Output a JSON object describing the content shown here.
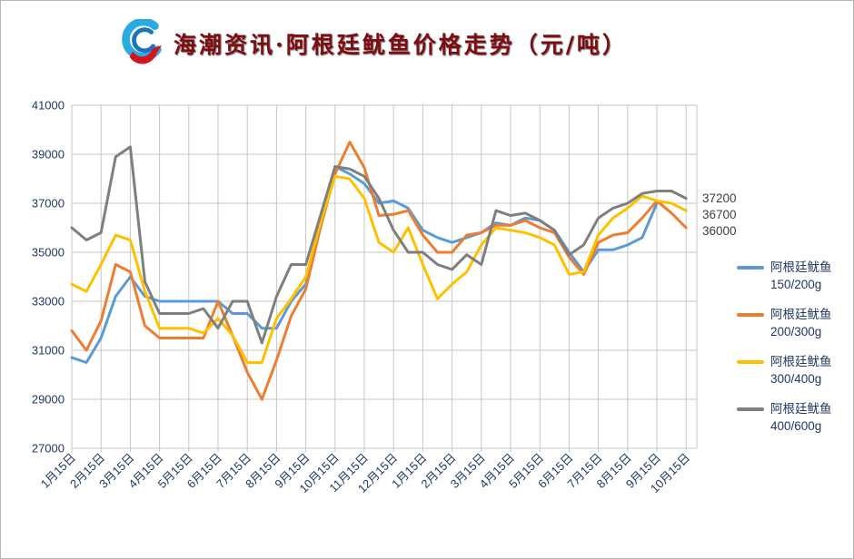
{
  "title": {
    "text": "海潮资讯·阿根廷鱿鱼价格走势（元/吨）",
    "color": "#7e0c10"
  },
  "logo": {
    "name": "haichao-wave-logo",
    "colors": {
      "light_blue": "#29abe2",
      "dark_blue": "#1b75bb",
      "red": "#d6131c"
    }
  },
  "colors": {
    "grid": "#c6c6c6",
    "axis_text": "#1f3864",
    "end_label_text": "#404040",
    "background": "#ffffff"
  },
  "chart_data": {
    "type": "line",
    "title": "海潮资讯·阿根廷鱿鱼价格走势（元/吨）",
    "xlabel": "",
    "ylabel": "",
    "ylim": [
      27000,
      41000
    ],
    "y_step": 2000,
    "grid": true,
    "legend_position": "right",
    "y_tick_labels": [
      "41000",
      "39000",
      "37000",
      "35000",
      "33000",
      "31000",
      "29000",
      "27000"
    ],
    "x_tick_labels": [
      "1月15日",
      "2月15日",
      "3月15日",
      "4月15日",
      "5月15日",
      "6月15日",
      "7月15日",
      "8月15日",
      "9月15日",
      "10月15日",
      "11月15日",
      "12月15日",
      "1月15日",
      "2月15日",
      "3月15日",
      "4月15日",
      "5月15日",
      "6月15日",
      "7月15日",
      "8月15日",
      "9月15日",
      "10月15日"
    ],
    "points_per_tick": 2,
    "series": [
      {
        "name": "阿根廷鱿鱼 150/200g",
        "color": "#5b9bd5",
        "values": [
          30700,
          30500,
          31500,
          33200,
          34000,
          33200,
          33000,
          33000,
          33000,
          33000,
          33000,
          32500,
          32500,
          31900,
          31900,
          33000,
          33700,
          36300,
          38500,
          38200,
          37800,
          37000,
          37100,
          36800,
          35900,
          35600,
          35400,
          35600,
          35800,
          36200,
          36100,
          36400,
          36300,
          35900,
          35000,
          34200,
          35100,
          35100,
          35300,
          35600,
          37000
        ]
      },
      {
        "name": "阿根廷鱿鱼 200/300g",
        "color": "#ed7d31",
        "values": [
          31800,
          31000,
          32200,
          34500,
          34200,
          32000,
          31500,
          31500,
          31500,
          31500,
          33000,
          31600,
          30100,
          29000,
          30600,
          32400,
          33500,
          36000,
          38200,
          39500,
          38450,
          36500,
          36550,
          36700,
          35700,
          35000,
          35000,
          35700,
          35800,
          36100,
          36100,
          36300,
          36000,
          35800,
          34800,
          34100,
          35400,
          35700,
          35800,
          36400,
          37100,
          36600,
          36000
        ]
      },
      {
        "name": "阿根廷鱿鱼 300/400g",
        "color": "#ffc000",
        "values": [
          33700,
          33400,
          34500,
          35700,
          35500,
          33400,
          31900,
          31900,
          31900,
          31700,
          32300,
          31600,
          30500,
          30500,
          32300,
          33100,
          34000,
          36200,
          38100,
          38000,
          37200,
          35400,
          35000,
          36000,
          34500,
          33100,
          33700,
          34200,
          35300,
          36000,
          35900,
          35800,
          35600,
          35300,
          34100,
          34200,
          35700,
          36400,
          36800,
          37300,
          37100,
          37000,
          36700
        ]
      },
      {
        "name": "阿根廷鱿鱼 400/600g",
        "color": "#7f7f7f",
        "values": [
          36000,
          35500,
          35800,
          38900,
          39300,
          33800,
          32500,
          32500,
          32500,
          32700,
          31900,
          33000,
          33000,
          31300,
          33200,
          34500,
          34500,
          36500,
          38500,
          38400,
          38100,
          37200,
          35900,
          35000,
          35000,
          34500,
          34300,
          34900,
          34500,
          36700,
          36500,
          36600,
          36300,
          35900,
          34900,
          35300,
          36400,
          36800,
          37000,
          37400,
          37500,
          37500,
          37200
        ]
      }
    ],
    "end_labels": [
      {
        "text": "37200",
        "value": 37200,
        "series": "阿根廷鱿鱼 400/600g"
      },
      {
        "text": "36700",
        "value": 36700,
        "series": "阿根廷鱿鱼 300/400g"
      },
      {
        "text": "36000",
        "value": 36000,
        "series": "阿根廷鱿鱼 200/300g"
      }
    ],
    "legend": {
      "items": [
        {
          "line1": "阿根廷鱿鱼",
          "line2": "150/200g",
          "color": "#5b9bd5"
        },
        {
          "line1": "阿根廷鱿鱼",
          "line2": "200/300g",
          "color": "#ed7d31"
        },
        {
          "line1": "阿根廷鱿鱼",
          "line2": "300/400g",
          "color": "#ffc000"
        },
        {
          "line1": "阿根廷鱿鱼",
          "line2": "400/600g",
          "color": "#7f7f7f"
        }
      ]
    }
  }
}
